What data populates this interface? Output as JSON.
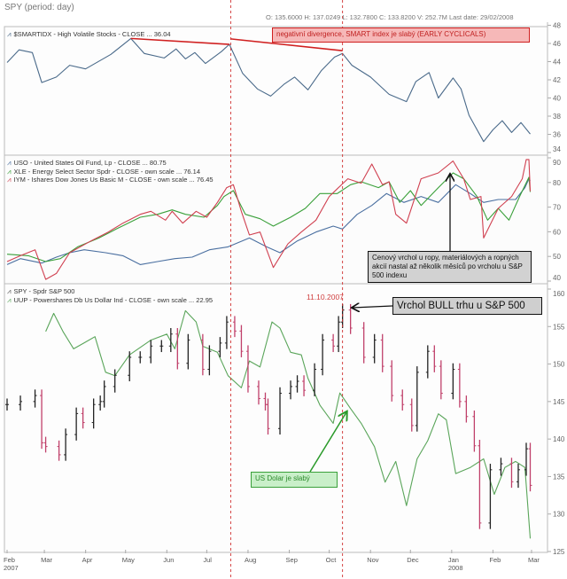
{
  "header": {
    "title": "SPY (period: day)",
    "ohlc": "O: 135.6000  H: 137.0249  L: 132.7800  C: 133.8200  V: 252.7M  Last date: 29/02/2008"
  },
  "annotations": {
    "divergence": "negativní divergence, SMART index je slabý (EARLY CYCLICALS)",
    "peak_note": "Cenový vrchol u ropy, materiálových a ropných akcií nastal až několik měsíců po vrcholu u S&P 500 indexu",
    "bull_peak": "Vrchol BULL trhu u S&P 500",
    "peak_date": "11.10.2007",
    "usd_weak": "US Dolar je slabý",
    "marker_dates": [
      "2007-07-19",
      "2007-10-11"
    ],
    "marker_color": "#d03030"
  },
  "x_axis": {
    "ticks": [
      {
        "date": "2007-02-01",
        "label": "Feb",
        "sub": "2007"
      },
      {
        "date": "2007-03-01",
        "label": "Mar",
        "sub": ""
      },
      {
        "date": "2007-04-01",
        "label": "Apr",
        "sub": ""
      },
      {
        "date": "2007-05-01",
        "label": "May",
        "sub": ""
      },
      {
        "date": "2007-06-01",
        "label": "Jun",
        "sub": ""
      },
      {
        "date": "2007-07-01",
        "label": "Jul",
        "sub": ""
      },
      {
        "date": "2007-08-01",
        "label": "Aug",
        "sub": ""
      },
      {
        "date": "2007-09-01",
        "label": "Sep",
        "sub": ""
      },
      {
        "date": "2007-10-01",
        "label": "Oct",
        "sub": ""
      },
      {
        "date": "2007-11-01",
        "label": "Nov",
        "sub": ""
      },
      {
        "date": "2007-12-01",
        "label": "Dec",
        "sub": ""
      },
      {
        "date": "2008-01-01",
        "label": "Jan",
        "sub": "2008"
      },
      {
        "date": "2008-02-01",
        "label": "Feb",
        "sub": ""
      },
      {
        "date": "2008-03-01",
        "label": "Mar",
        "sub": ""
      }
    ],
    "range": [
      "2007-02-01",
      "2008-03-01"
    ]
  },
  "chart_data": [
    {
      "type": "line",
      "ylim": [
        34,
        48
      ],
      "yticks": [
        34,
        36,
        38,
        40,
        42,
        44,
        46,
        48
      ],
      "grid": false,
      "series": [
        {
          "name": "$SMARTIDX - High Volatile Stocks - CLOSE ... 36.04",
          "color": "#4a6a8a",
          "x": [
            "2007-02-01",
            "2007-02-10",
            "2007-02-20",
            "2007-02-27",
            "2007-03-10",
            "2007-03-20",
            "2007-04-01",
            "2007-04-20",
            "2007-05-05",
            "2007-05-15",
            "2007-05-30",
            "2007-06-08",
            "2007-06-15",
            "2007-06-22",
            "2007-06-30",
            "2007-07-12",
            "2007-07-18",
            "2007-07-28",
            "2007-08-08",
            "2007-08-18",
            "2007-08-28",
            "2007-09-05",
            "2007-09-15",
            "2007-09-25",
            "2007-10-05",
            "2007-10-11",
            "2007-10-18",
            "2007-11-01",
            "2007-11-15",
            "2007-11-28",
            "2007-12-05",
            "2007-12-15",
            "2007-12-22",
            "2008-01-02",
            "2008-01-08",
            "2008-01-14",
            "2008-01-25",
            "2008-02-01",
            "2008-02-08",
            "2008-02-15",
            "2008-02-22",
            "2008-02-29"
          ],
          "y": [
            43.9,
            45.3,
            45.0,
            41.7,
            42.3,
            43.6,
            43.2,
            44.8,
            46.55,
            44.9,
            44.4,
            45.4,
            44.3,
            45.0,
            43.8,
            45.1,
            45.9,
            42.7,
            41.0,
            40.2,
            41.5,
            42.3,
            40.9,
            43.0,
            44.5,
            44.9,
            43.6,
            42.3,
            40.4,
            39.6,
            41.8,
            42.8,
            40.0,
            42.2,
            41.0,
            38.1,
            35.2,
            36.5,
            37.5,
            36.2,
            37.3,
            36.04
          ]
        }
      ],
      "trendlines": [
        {
          "from": [
            "2007-05-05",
            46.55
          ],
          "to": [
            "2007-07-18",
            45.9
          ]
        },
        {
          "from": [
            "2007-07-19",
            46.5
          ],
          "to": [
            "2007-10-11",
            45.2
          ]
        }
      ]
    },
    {
      "type": "line",
      "ylim": [
        40,
        90
      ],
      "yticks": [
        40,
        50,
        60,
        70,
        80,
        90
      ],
      "grid": false,
      "series": [
        {
          "name": "USO - United States Oil Fund, Lp - CLOSE ... 80.75",
          "color": "#4a6fa0",
          "x": [
            "2007-02-01",
            "2007-02-11",
            "2007-02-27",
            "2007-03-10",
            "2007-03-20",
            "2007-03-31",
            "2007-04-16",
            "2007-04-29",
            "2007-05-12",
            "2007-05-25",
            "2007-06-07",
            "2007-06-20",
            "2007-07-03",
            "2007-07-17",
            "2007-08-02",
            "2007-08-15",
            "2007-08-25",
            "2007-09-07",
            "2007-09-21",
            "2007-10-04",
            "2007-10-11",
            "2007-10-22",
            "2007-11-02",
            "2007-11-13",
            "2007-11-26",
            "2007-12-09",
            "2007-12-22",
            "2008-01-04",
            "2008-01-15",
            "2008-01-25",
            "2008-02-05",
            "2008-02-18",
            "2008-02-25",
            "2008-02-28",
            "2008-02-29"
          ],
          "y": [
            46.7,
            49.1,
            47.3,
            49.7,
            51.5,
            52.7,
            51.5,
            50.3,
            46.7,
            47.9,
            49.1,
            49.7,
            52.7,
            53.9,
            57.5,
            53.9,
            51.5,
            56.3,
            59.9,
            62.3,
            61.1,
            67.1,
            70.7,
            75.5,
            71.9,
            74.3,
            71.9,
            79.1,
            75.5,
            71.9,
            73.1,
            73.1,
            77.9,
            81.5,
            80.75
          ]
        },
        {
          "name": "XLE - Energy Select Sector Spdr - CLOSE - own scale ... 76.14",
          "color": "#3aa03a",
          "x": [
            "2007-02-01",
            "2007-02-17",
            "2007-03-02",
            "2007-03-13",
            "2007-03-26",
            "2007-04-11",
            "2007-04-24",
            "2007-05-12",
            "2007-05-25",
            "2007-06-05",
            "2007-06-15",
            "2007-06-29",
            "2007-07-09",
            "2007-07-14",
            "2007-07-21",
            "2007-07-30",
            "2007-08-10",
            "2007-08-20",
            "2007-09-02",
            "2007-09-13",
            "2007-09-24",
            "2007-10-07",
            "2007-10-17",
            "2007-10-25",
            "2007-11-07",
            "2007-11-15",
            "2007-11-23",
            "2007-12-01",
            "2007-12-09",
            "2007-12-22",
            "2008-01-02",
            "2008-01-10",
            "2008-01-20",
            "2008-01-28",
            "2008-02-05",
            "2008-02-13",
            "2008-02-21",
            "2008-02-28",
            "2008-02-29"
          ],
          "y": [
            50.9,
            50.3,
            47.9,
            49.1,
            53.9,
            57.5,
            61.1,
            65.9,
            67.1,
            68.9,
            67.1,
            65.9,
            70.7,
            74.3,
            76.7,
            67.1,
            65.3,
            62.3,
            65.9,
            69.5,
            75.5,
            75.5,
            79.1,
            80.3,
            77.9,
            80.3,
            71.9,
            76.7,
            70.7,
            77.9,
            83.9,
            81.5,
            74.3,
            64.7,
            69.5,
            64.7,
            74.3,
            82.1,
            76.14
          ]
        },
        {
          "name": "IYM - Ishares Dow Jones Us Basic M - CLOSE - own scale ... 76.45",
          "color": "#d04050",
          "x": [
            "2007-02-01",
            "2007-02-11",
            "2007-02-22",
            "2007-03-02",
            "2007-03-10",
            "2007-03-20",
            "2007-04-05",
            "2007-04-18",
            "2007-04-29",
            "2007-05-12",
            "2007-05-20",
            "2007-05-31",
            "2007-06-05",
            "2007-06-13",
            "2007-06-23",
            "2007-07-01",
            "2007-07-09",
            "2007-07-16",
            "2007-07-21",
            "2007-07-27",
            "2007-08-02",
            "2007-08-10",
            "2007-08-20",
            "2007-08-31",
            "2007-09-10",
            "2007-09-21",
            "2007-10-01",
            "2007-10-15",
            "2007-10-25",
            "2007-11-02",
            "2007-11-10",
            "2007-11-15",
            "2007-11-20",
            "2007-11-28",
            "2007-12-09",
            "2007-12-22",
            "2008-01-02",
            "2008-01-10",
            "2008-01-15",
            "2008-01-23",
            "2008-01-25",
            "2008-02-05",
            "2008-02-15",
            "2008-02-23",
            "2008-02-26",
            "2008-02-28",
            "2008-02-29"
          ],
          "y": [
            47.9,
            50.3,
            52.7,
            40.7,
            43.1,
            51.5,
            56.3,
            59.9,
            63.5,
            67.1,
            68.3,
            64.7,
            68.3,
            63.5,
            68.3,
            65.9,
            71.9,
            77.9,
            79.1,
            68.3,
            58.7,
            59.9,
            45.5,
            55.1,
            59.9,
            64.7,
            74.3,
            81.5,
            79.7,
            87.5,
            79.1,
            80.3,
            67.1,
            63.5,
            81.5,
            83.9,
            88.7,
            81.5,
            73.1,
            74.3,
            57.5,
            69.5,
            74.3,
            81.5,
            89.3,
            89.3,
            76.45
          ]
        }
      ]
    },
    {
      "type": "ohlc+line",
      "ylim": [
        125,
        160
      ],
      "yticks": [
        125,
        130,
        135,
        140,
        145,
        150,
        155,
        160
      ],
      "grid": false,
      "up_color": "#222222",
      "down_color": "#c0406a",
      "series": [
        {
          "name": "SPY - Spdr S&P 500",
          "kind": "bars",
          "x": [
            "2007-02-01",
            "2007-02-11",
            "2007-02-22",
            "2007-02-27",
            "2007-03-02",
            "2007-03-12",
            "2007-03-17",
            "2007-03-25",
            "2007-03-30",
            "2007-04-07",
            "2007-04-12",
            "2007-04-15",
            "2007-04-23",
            "2007-05-04",
            "2007-05-12",
            "2007-05-20",
            "2007-05-28",
            "2007-06-04",
            "2007-06-09",
            "2007-06-17",
            "2007-06-28",
            "2007-07-03",
            "2007-07-11",
            "2007-07-16",
            "2007-07-22",
            "2007-07-27",
            "2007-08-01",
            "2007-08-09",
            "2007-08-14",
            "2007-08-16",
            "2007-08-25",
            "2007-09-02",
            "2007-09-07",
            "2007-09-12",
            "2007-09-20",
            "2007-09-26",
            "2007-10-04",
            "2007-10-08",
            "2007-10-11",
            "2007-10-17",
            "2007-10-27",
            "2007-11-04",
            "2007-11-10",
            "2007-11-17",
            "2007-11-25",
            "2007-12-02",
            "2007-12-06",
            "2007-12-14",
            "2007-12-19",
            "2007-12-24",
            "2008-01-02",
            "2008-01-07",
            "2008-01-12",
            "2008-01-18",
            "2008-01-22",
            "2008-01-30",
            "2008-02-07",
            "2008-02-15",
            "2008-02-20",
            "2008-02-26",
            "2008-02-29"
          ],
          "close": [
            144.6,
            145.0,
            145.8,
            139.5,
            139.0,
            137.9,
            140.6,
            143.4,
            142.2,
            144.6,
            145.0,
            147.0,
            148.5,
            150.9,
            150.9,
            152.4,
            152.4,
            154.0,
            150.1,
            153.2,
            149.3,
            151.7,
            152.8,
            155.6,
            154.4,
            151.7,
            147.0,
            145.4,
            144.6,
            141.4,
            146.1,
            147.0,
            147.7,
            146.5,
            149.3,
            153.2,
            152.4,
            155.6,
            157.2,
            154.8,
            150.9,
            153.2,
            149.7,
            145.8,
            144.6,
            141.8,
            148.9,
            151.7,
            149.7,
            146.1,
            149.3,
            145.0,
            143.0,
            139.1,
            128.8,
            135.9,
            136.7,
            134.3,
            135.9,
            138.7,
            133.82
          ]
        },
        {
          "name": "UUP - Powershares Db Us Dollar Ind - CLOSE - own scale ... 22.95",
          "kind": "line",
          "color": "#5aa55a",
          "ylim": [
            22.8,
            25.83
          ],
          "x": [
            "2007-03-02",
            "2007-03-08",
            "2007-03-15",
            "2007-03-23",
            "2007-03-31",
            "2007-04-08",
            "2007-04-16",
            "2007-04-23",
            "2007-05-04",
            "2007-05-20",
            "2007-06-01",
            "2007-06-07",
            "2007-06-15",
            "2007-06-23",
            "2007-06-28",
            "2007-07-09",
            "2007-07-17",
            "2007-07-27",
            "2007-08-02",
            "2007-08-10",
            "2007-08-19",
            "2007-08-25",
            "2007-09-02",
            "2007-09-10",
            "2007-09-15",
            "2007-09-24",
            "2007-10-04",
            "2007-10-09",
            "2007-10-17",
            "2007-10-25",
            "2007-11-04",
            "2007-11-12",
            "2007-11-20",
            "2007-11-28",
            "2007-12-06",
            "2007-12-14",
            "2007-12-22",
            "2007-12-28",
            "2008-01-04",
            "2008-01-15",
            "2008-01-25",
            "2008-02-02",
            "2008-02-10",
            "2008-02-18",
            "2008-02-25",
            "2008-02-29"
          ],
          "y": [
            25.34,
            25.55,
            25.34,
            25.14,
            25.21,
            25.28,
            24.87,
            24.83,
            25.07,
            25.24,
            25.31,
            25.14,
            25.58,
            25.45,
            25.17,
            25.1,
            24.83,
            24.69,
            25.0,
            24.93,
            25.45,
            25.38,
            25.1,
            25.07,
            24.8,
            24.49,
            24.28,
            24.63,
            24.45,
            24.28,
            24.01,
            23.6,
            23.84,
            23.33,
            23.87,
            24.08,
            24.39,
            24.32,
            23.7,
            23.77,
            23.87,
            23.46,
            23.77,
            23.84,
            23.77,
            22.95
          ]
        }
      ]
    }
  ]
}
